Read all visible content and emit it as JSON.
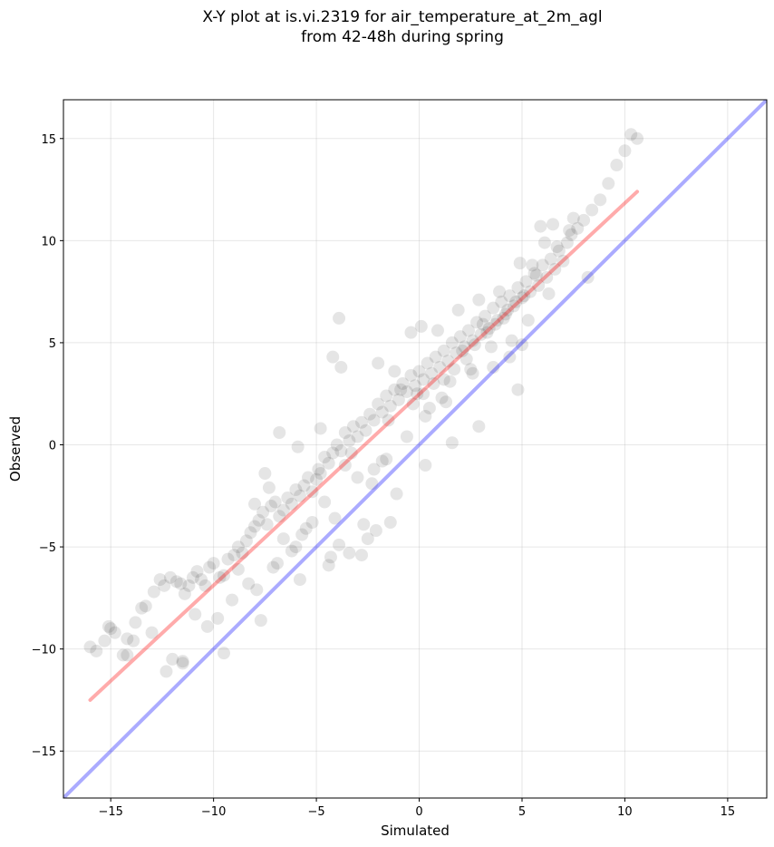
{
  "chart_data": {
    "type": "scatter",
    "title": [
      "X-Y plot at is.vi.2319 for air_temperature_at_2m_agl",
      "from 42-48h during spring"
    ],
    "xlabel": "Simulated",
    "ylabel": "Observed",
    "xlim": [
      -17.3,
      16.9
    ],
    "ylim": [
      -17.3,
      16.9
    ],
    "xticks": [
      -15,
      -10,
      -5,
      0,
      5,
      10,
      15
    ],
    "yticks": [
      -15,
      -10,
      -5,
      0,
      5,
      10,
      15
    ],
    "xtick_labels": [
      "−15",
      "−10",
      "−5",
      "0",
      "5",
      "10",
      "15"
    ],
    "ytick_labels": [
      "−15",
      "−10",
      "−5",
      "0",
      "5",
      "10",
      "15"
    ],
    "grid": true,
    "point_color": "#000000",
    "point_opacity": 0.1,
    "points": {
      "x": [
        -16.0,
        -15.7,
        -15.3,
        -15.0,
        -14.8,
        -14.4,
        -14.2,
        -13.8,
        -13.5,
        -13.3,
        -12.9,
        -12.6,
        -12.4,
        -12.1,
        -11.8,
        -11.6,
        -11.4,
        -11.2,
        -11.0,
        -10.8,
        -10.6,
        -10.4,
        -10.2,
        -10.0,
        -9.7,
        -9.5,
        -9.3,
        -9.0,
        -8.8,
        -8.6,
        -8.4,
        -8.2,
        -8.0,
        -7.8,
        -7.6,
        -7.4,
        -7.2,
        -7.0,
        -6.8,
        -6.6,
        -6.4,
        -6.2,
        -6.0,
        -5.8,
        -5.6,
        -5.4,
        -5.2,
        -5.0,
        -4.8,
        -4.6,
        -4.4,
        -4.2,
        -4.0,
        -3.8,
        -3.6,
        -3.4,
        -3.2,
        -3.0,
        -2.8,
        -2.6,
        -2.4,
        -2.2,
        -2.0,
        -1.8,
        -1.6,
        -1.4,
        -1.2,
        -1.0,
        -0.8,
        -0.6,
        -0.4,
        -0.2,
        0.0,
        0.2,
        0.4,
        0.6,
        0.8,
        1.0,
        1.2,
        1.4,
        1.6,
        1.8,
        2.0,
        2.2,
        2.4,
        2.6,
        2.8,
        3.0,
        3.2,
        3.4,
        3.6,
        3.8,
        4.0,
        4.2,
        4.4,
        4.6,
        4.8,
        5.0,
        5.2,
        5.4,
        5.6,
        5.8,
        6.0,
        6.2,
        6.4,
        6.6,
        6.8,
        7.0,
        7.2,
        7.4,
        7.7,
        8.0,
        8.4,
        8.8,
        9.2,
        9.6,
        10.0,
        10.3,
        10.6,
        -14.2,
        -12.0,
        -11.5,
        -10.9,
        -10.3,
        -9.1,
        -8.3,
        -7.9,
        -7.1,
        -6.6,
        -6.2,
        -5.7,
        -5.2,
        -4.6,
        -4.3,
        -3.9,
        -3.6,
        -3.0,
        -2.5,
        -2.1,
        -1.6,
        -1.1,
        -0.6,
        -0.3,
        0.3,
        0.7,
        1.3,
        1.7,
        2.3,
        2.7,
        3.3,
        3.7,
        4.3,
        4.7,
        5.3,
        5.7,
        6.3,
        6.7,
        7.3,
        -13.0,
        -9.8,
        -8.8,
        -7.3,
        -6.9,
        -6.0,
        -5.5,
        -4.9,
        -4.1,
        -3.4,
        -2.7,
        -2.3,
        -1.5,
        -0.9,
        -0.1,
        0.5,
        1.1,
        1.5,
        2.1,
        2.5,
        3.1,
        3.5,
        4.1,
        4.5,
        5.1,
        5.5,
        6.1,
        6.5,
        7.5,
        8.2,
        -3.9,
        -4.2,
        -3.8,
        -2.0,
        -1.2,
        -0.4,
        0.1,
        0.9,
        1.9,
        2.9,
        3.9,
        4.9,
        5.9,
        -6.8,
        -7.5,
        -8.0,
        -5.9,
        -4.8,
        -3.3,
        -2.2,
        -1.8,
        0.2,
        1.2,
        2.6,
        3.6,
        4.4,
        5.0,
        4.8,
        2.9,
        1.6,
        0.3,
        -1.4,
        -2.8,
        -4.4,
        -5.8,
        -7.7,
        -9.5,
        -11.5,
        -12.3,
        -13.9,
        -15.1
      ],
      "y": [
        -9.9,
        -10.1,
        -9.6,
        -9.0,
        -9.2,
        -10.3,
        -9.5,
        -8.7,
        -8.0,
        -7.9,
        -7.2,
        -6.6,
        -6.9,
        -6.5,
        -6.7,
        -6.8,
        -7.3,
        -6.9,
        -6.5,
        -6.2,
        -6.6,
        -6.9,
        -6.0,
        -5.8,
        -6.5,
        -6.4,
        -5.6,
        -5.4,
        -5.0,
        -5.3,
        -4.7,
        -4.3,
        -4.0,
        -3.7,
        -3.3,
        -3.9,
        -3.0,
        -2.8,
        -3.5,
        -3.2,
        -2.6,
        -2.9,
        -2.2,
        -2.5,
        -2.0,
        -1.6,
        -2.3,
        -1.7,
        -1.4,
        -0.6,
        -0.9,
        -0.4,
        0.0,
        -0.3,
        0.6,
        0.2,
        0.9,
        0.4,
        1.1,
        0.7,
        1.5,
        1.2,
        2.0,
        1.6,
        2.4,
        1.9,
        2.7,
        2.2,
        3.0,
        2.6,
        3.4,
        2.9,
        3.6,
        3.2,
        4.0,
        3.5,
        4.3,
        3.8,
        4.6,
        4.1,
        5.0,
        4.5,
        5.3,
        4.8,
        5.6,
        5.1,
        6.0,
        5.4,
        6.3,
        5.7,
        6.7,
        6.1,
        7.0,
        6.4,
        7.3,
        6.8,
        7.7,
        7.2,
        8.0,
        7.5,
        8.4,
        7.8,
        8.8,
        8.2,
        9.1,
        8.6,
        9.5,
        9.0,
        9.9,
        10.3,
        10.6,
        11.0,
        11.5,
        12.0,
        12.8,
        13.7,
        14.4,
        15.2,
        15.0,
        -10.3,
        -10.5,
        -10.7,
        -8.3,
        -8.9,
        -7.6,
        -6.8,
        -7.1,
        -6.0,
        -4.6,
        -5.2,
        -4.4,
        -3.8,
        -2.8,
        -5.5,
        -4.9,
        -1.0,
        -1.6,
        -4.6,
        -4.2,
        -0.7,
        -2.4,
        0.4,
        2.0,
        1.4,
        3.0,
        2.1,
        3.7,
        4.2,
        4.9,
        5.5,
        5.9,
        6.6,
        7.0,
        6.1,
        8.3,
        7.4,
        9.7,
        10.5,
        -9.2,
        -8.5,
        -6.1,
        -2.1,
        -5.8,
        -5.0,
        -4.1,
        -1.2,
        -3.6,
        -5.3,
        -3.9,
        -1.9,
        1.2,
        2.7,
        2.5,
        1.8,
        2.3,
        3.1,
        4.6,
        3.7,
        5.9,
        4.8,
        6.2,
        5.1,
        7.3,
        8.8,
        9.9,
        10.8,
        11.1,
        8.2,
        6.2,
        4.3,
        3.8,
        4.0,
        3.6,
        5.5,
        5.8,
        5.6,
        6.6,
        7.1,
        7.5,
        8.9,
        10.7,
        0.6,
        -1.4,
        -2.9,
        -0.1,
        0.8,
        -0.4,
        -1.2,
        -0.8,
        2.5,
        3.2,
        3.5,
        3.8,
        4.3,
        4.9,
        2.7,
        0.9,
        0.1,
        -1.0,
        -3.8,
        -5.4,
        -5.9,
        -6.6,
        -8.6,
        -10.2,
        -10.6,
        -11.1,
        -9.6,
        -8.9
      ]
    },
    "lines": [
      {
        "name": "regression",
        "color": "#ff0000",
        "opacity": 0.33,
        "x": [
          -16.0,
          10.6
        ],
        "y": [
          -12.5,
          12.4
        ]
      },
      {
        "name": "one-to-one",
        "color": "#0000ff",
        "opacity": 0.33,
        "x": [
          -17.3,
          16.9
        ],
        "y": [
          -17.3,
          16.9
        ]
      }
    ]
  }
}
